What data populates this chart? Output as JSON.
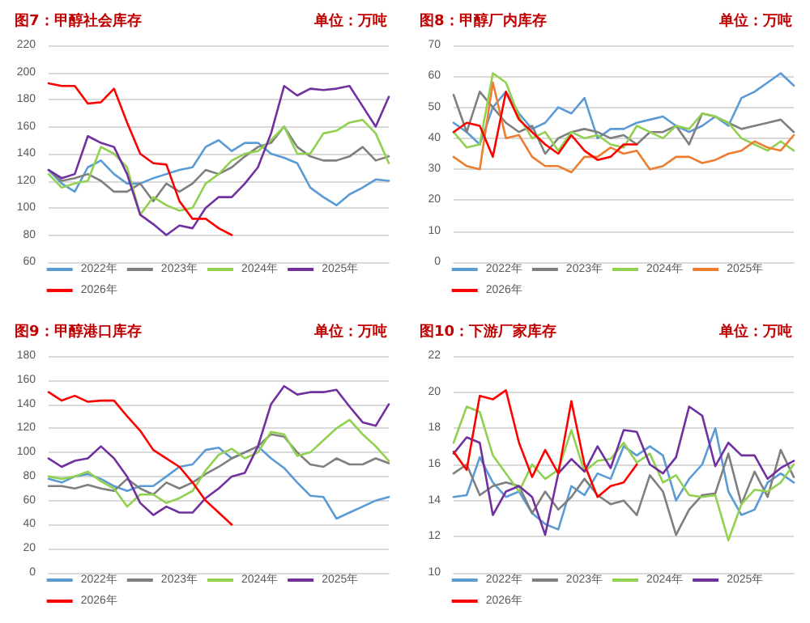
{
  "chart_data": [
    {
      "type": "line",
      "title": "图7：甲醇社会库存",
      "subtitle": "单位：万吨",
      "categories": [
        null,
        null,
        null,
        null,
        null,
        null,
        null,
        null,
        null,
        null,
        null,
        null,
        null,
        null,
        null,
        null,
        null,
        null,
        null,
        null,
        null,
        null,
        null,
        null,
        null,
        null,
        null
      ],
      "ylim": [
        60,
        220
      ],
      "yticks": [
        60,
        80,
        100,
        120,
        140,
        160,
        180,
        200,
        220
      ],
      "grid": "y",
      "legend": "bottom",
      "marker": "none",
      "series": [
        {
          "name": "2022年",
          "color": "#5b9bd5",
          "values": [
            128,
            118,
            112,
            130,
            135,
            125,
            118,
            118,
            122,
            125,
            128,
            130,
            145,
            150,
            142,
            148,
            148,
            140,
            137,
            133,
            115,
            108,
            102,
            110,
            115,
            121,
            120
          ]
        },
        {
          "name": "2023年",
          "color": "#7f7f7f",
          "values": [
            128,
            120,
            122,
            125,
            120,
            112,
            112,
            118,
            105,
            118,
            112,
            118,
            128,
            125,
            130,
            138,
            145,
            148,
            160,
            145,
            138,
            135,
            135,
            138,
            145,
            135,
            138
          ]
        },
        {
          "name": "2024年",
          "color": "#92d050",
          "values": [
            125,
            115,
            118,
            120,
            145,
            140,
            130,
            95,
            108,
            102,
            98,
            100,
            118,
            125,
            135,
            140,
            142,
            150,
            160,
            140,
            140,
            155,
            157,
            163,
            165,
            155,
            133
          ]
        },
        {
          "name": "2025年",
          "color": "#7030a0",
          "values": [
            128,
            122,
            125,
            153,
            148,
            145,
            125,
            95,
            88,
            80,
            87,
            85,
            100,
            108,
            108,
            118,
            130,
            155,
            190,
            183,
            188,
            187,
            188,
            190,
            175,
            160,
            182
          ]
        },
        {
          "name": "2026年",
          "color": "#ff0000",
          "values": [
            192,
            190,
            190,
            177,
            178,
            188,
            163,
            140,
            133,
            132,
            105,
            92,
            92,
            85,
            80,
            null,
            null,
            null,
            null,
            null,
            null,
            null,
            null,
            null,
            null,
            null,
            null
          ]
        }
      ]
    },
    {
      "type": "line",
      "title": "图8：甲醇厂内库存",
      "subtitle": "单位：万吨",
      "categories": [
        null,
        null,
        null,
        null,
        null,
        null,
        null,
        null,
        null,
        null,
        null,
        null,
        null,
        null,
        null,
        null,
        null,
        null,
        null,
        null,
        null,
        null,
        null,
        null,
        null,
        null,
        null
      ],
      "ylim": [
        0,
        70
      ],
      "yticks": [
        0,
        10,
        20,
        30,
        40,
        50,
        60,
        70
      ],
      "grid": "y",
      "legend": "bottom",
      "marker": "none",
      "series": [
        {
          "name": "2022年",
          "color": "#5b9bd5",
          "values": [
            45,
            42,
            38,
            50,
            55,
            48,
            43,
            45,
            50,
            48,
            53,
            40,
            43,
            43,
            45,
            46,
            47,
            44,
            42,
            44,
            47,
            44,
            53,
            55,
            58,
            61,
            57
          ]
        },
        {
          "name": "2023年",
          "color": "#7f7f7f",
          "values": [
            54,
            42,
            55,
            50,
            45,
            42,
            44,
            35,
            40,
            42,
            43,
            42,
            40,
            41,
            38,
            42,
            42,
            44,
            38,
            48,
            47,
            45,
            43,
            44,
            45,
            46,
            42
          ]
        },
        {
          "name": "2024年",
          "color": "#92d050",
          "values": [
            42,
            37,
            38,
            61,
            58,
            47,
            40,
            42,
            36,
            42,
            40,
            41,
            38,
            37,
            44,
            42,
            40,
            44,
            43,
            48,
            47,
            45,
            40,
            38,
            36,
            39,
            36
          ]
        },
        {
          "name": "2025年",
          "color": "#ed7d31",
          "values": [
            34,
            31,
            30,
            58,
            40,
            41,
            34,
            31,
            31,
            29,
            34,
            34,
            37,
            35,
            36,
            30,
            31,
            34,
            34,
            32,
            33,
            35,
            36,
            39,
            37,
            36,
            41
          ]
        },
        {
          "name": "2026年",
          "color": "#ff0000",
          "values": [
            42,
            45,
            44,
            34,
            55,
            46,
            42,
            38,
            35,
            41,
            36,
            33,
            34,
            38,
            38,
            null,
            null,
            null,
            null,
            null,
            null,
            null,
            null,
            null,
            null,
            null,
            null
          ]
        }
      ]
    },
    {
      "type": "line",
      "title": "图9：甲醇港口库存",
      "subtitle": "单位：万吨",
      "categories": [
        null,
        null,
        null,
        null,
        null,
        null,
        null,
        null,
        null,
        null,
        null,
        null,
        null,
        null,
        null,
        null,
        null,
        null,
        null,
        null,
        null,
        null,
        null,
        null,
        null,
        null,
        null
      ],
      "ylim": [
        0,
        180
      ],
      "yticks": [
        0,
        20,
        40,
        60,
        80,
        100,
        120,
        140,
        160,
        180
      ],
      "grid": "y",
      "legend": "bottom",
      "marker": "none",
      "series": [
        {
          "name": "2022年",
          "color": "#5b9bd5",
          "values": [
            78,
            75,
            80,
            82,
            78,
            72,
            68,
            72,
            72,
            80,
            88,
            90,
            102,
            104,
            95,
            100,
            105,
            95,
            87,
            75,
            64,
            63,
            45,
            50,
            55,
            60,
            63
          ]
        },
        {
          "name": "2023年",
          "color": "#7f7f7f",
          "values": [
            72,
            72,
            70,
            73,
            70,
            68,
            78,
            70,
            65,
            75,
            70,
            75,
            82,
            88,
            95,
            100,
            105,
            115,
            113,
            100,
            90,
            88,
            95,
            90,
            90,
            95,
            91
          ]
        },
        {
          "name": "2024年",
          "color": "#92d050",
          "values": [
            80,
            78,
            80,
            84,
            76,
            70,
            55,
            65,
            65,
            58,
            62,
            68,
            85,
            98,
            103,
            95,
            100,
            117,
            115,
            97,
            100,
            110,
            120,
            127,
            115,
            105,
            93
          ]
        },
        {
          "name": "2025年",
          "color": "#7030a0",
          "values": [
            95,
            88,
            93,
            95,
            105,
            95,
            80,
            58,
            48,
            55,
            50,
            50,
            62,
            70,
            80,
            83,
            105,
            140,
            155,
            148,
            150,
            150,
            152,
            138,
            125,
            122,
            140
          ]
        },
        {
          "name": "2026年",
          "color": "#ff0000",
          "values": [
            150,
            143,
            147,
            142,
            143,
            143,
            130,
            118,
            102,
            95,
            88,
            75,
            60,
            50,
            40,
            null,
            null,
            null,
            null,
            null,
            null,
            null,
            null,
            null,
            null,
            null,
            null
          ]
        }
      ]
    },
    {
      "type": "line",
      "title": "图10：下游厂家库存",
      "subtitle": "单位：万吨",
      "categories": [
        null,
        null,
        null,
        null,
        null,
        null,
        null,
        null,
        null,
        null,
        null,
        null,
        null,
        null,
        null,
        null,
        null,
        null,
        null,
        null,
        null,
        null,
        null,
        null,
        null,
        null,
        null
      ],
      "ylim": [
        10,
        22
      ],
      "yticks": [
        10,
        12,
        14,
        16,
        18,
        20,
        22
      ],
      "grid": "y",
      "legend": "bottom",
      "marker": "none",
      "series": [
        {
          "name": "2022年",
          "color": "#5b9bd5",
          "values": [
            14.2,
            14.3,
            16.4,
            15,
            14.2,
            14.5,
            13.3,
            12.7,
            12.4,
            14.8,
            14.3,
            15.5,
            15.2,
            17,
            16.5,
            17,
            16.5,
            14,
            15.2,
            16,
            18,
            14.5,
            13.2,
            13.5,
            15,
            15.5,
            15
          ]
        },
        {
          "name": "2023年",
          "color": "#7f7f7f",
          "values": [
            15.5,
            16,
            14.3,
            14.8,
            15,
            14.8,
            13.3,
            14.5,
            13.5,
            14.2,
            15.2,
            14.3,
            13.8,
            14,
            13.2,
            15.4,
            14.5,
            12.1,
            13.5,
            14.3,
            14.4,
            16.6,
            13.8,
            15.6,
            14.2,
            16.8,
            15.3
          ]
        },
        {
          "name": "2024年",
          "color": "#92d050",
          "values": [
            17.2,
            19.2,
            18.9,
            16.5,
            15.5,
            14.5,
            16,
            15.2,
            15.7,
            17.9,
            15.6,
            16.2,
            16.3,
            17.2,
            16.1,
            16.6,
            15,
            15.4,
            14.3,
            14.2,
            14.3,
            11.8,
            13.8,
            14.6,
            14.5,
            15,
            16
          ]
        },
        {
          "name": "2025年",
          "color": "#7030a0",
          "values": [
            16.6,
            17.5,
            17.2,
            13.2,
            14.5,
            14.8,
            14.2,
            12.1,
            15.5,
            16.3,
            15.6,
            17,
            15.8,
            17.9,
            17.8,
            16,
            15.5,
            16.4,
            19.2,
            18.7,
            15.9,
            17.2,
            16.5,
            16.5,
            15.2,
            15.8,
            16.2
          ]
        },
        {
          "name": "2026年",
          "color": "#ff0000",
          "values": [
            16.7,
            15.7,
            19.8,
            19.6,
            20.1,
            17.2,
            15.3,
            16.8,
            15.5,
            19.5,
            16,
            14.2,
            14.8,
            15,
            16,
            null,
            null,
            null,
            null,
            null,
            null,
            null,
            null,
            null,
            null,
            null,
            null
          ]
        }
      ]
    }
  ]
}
